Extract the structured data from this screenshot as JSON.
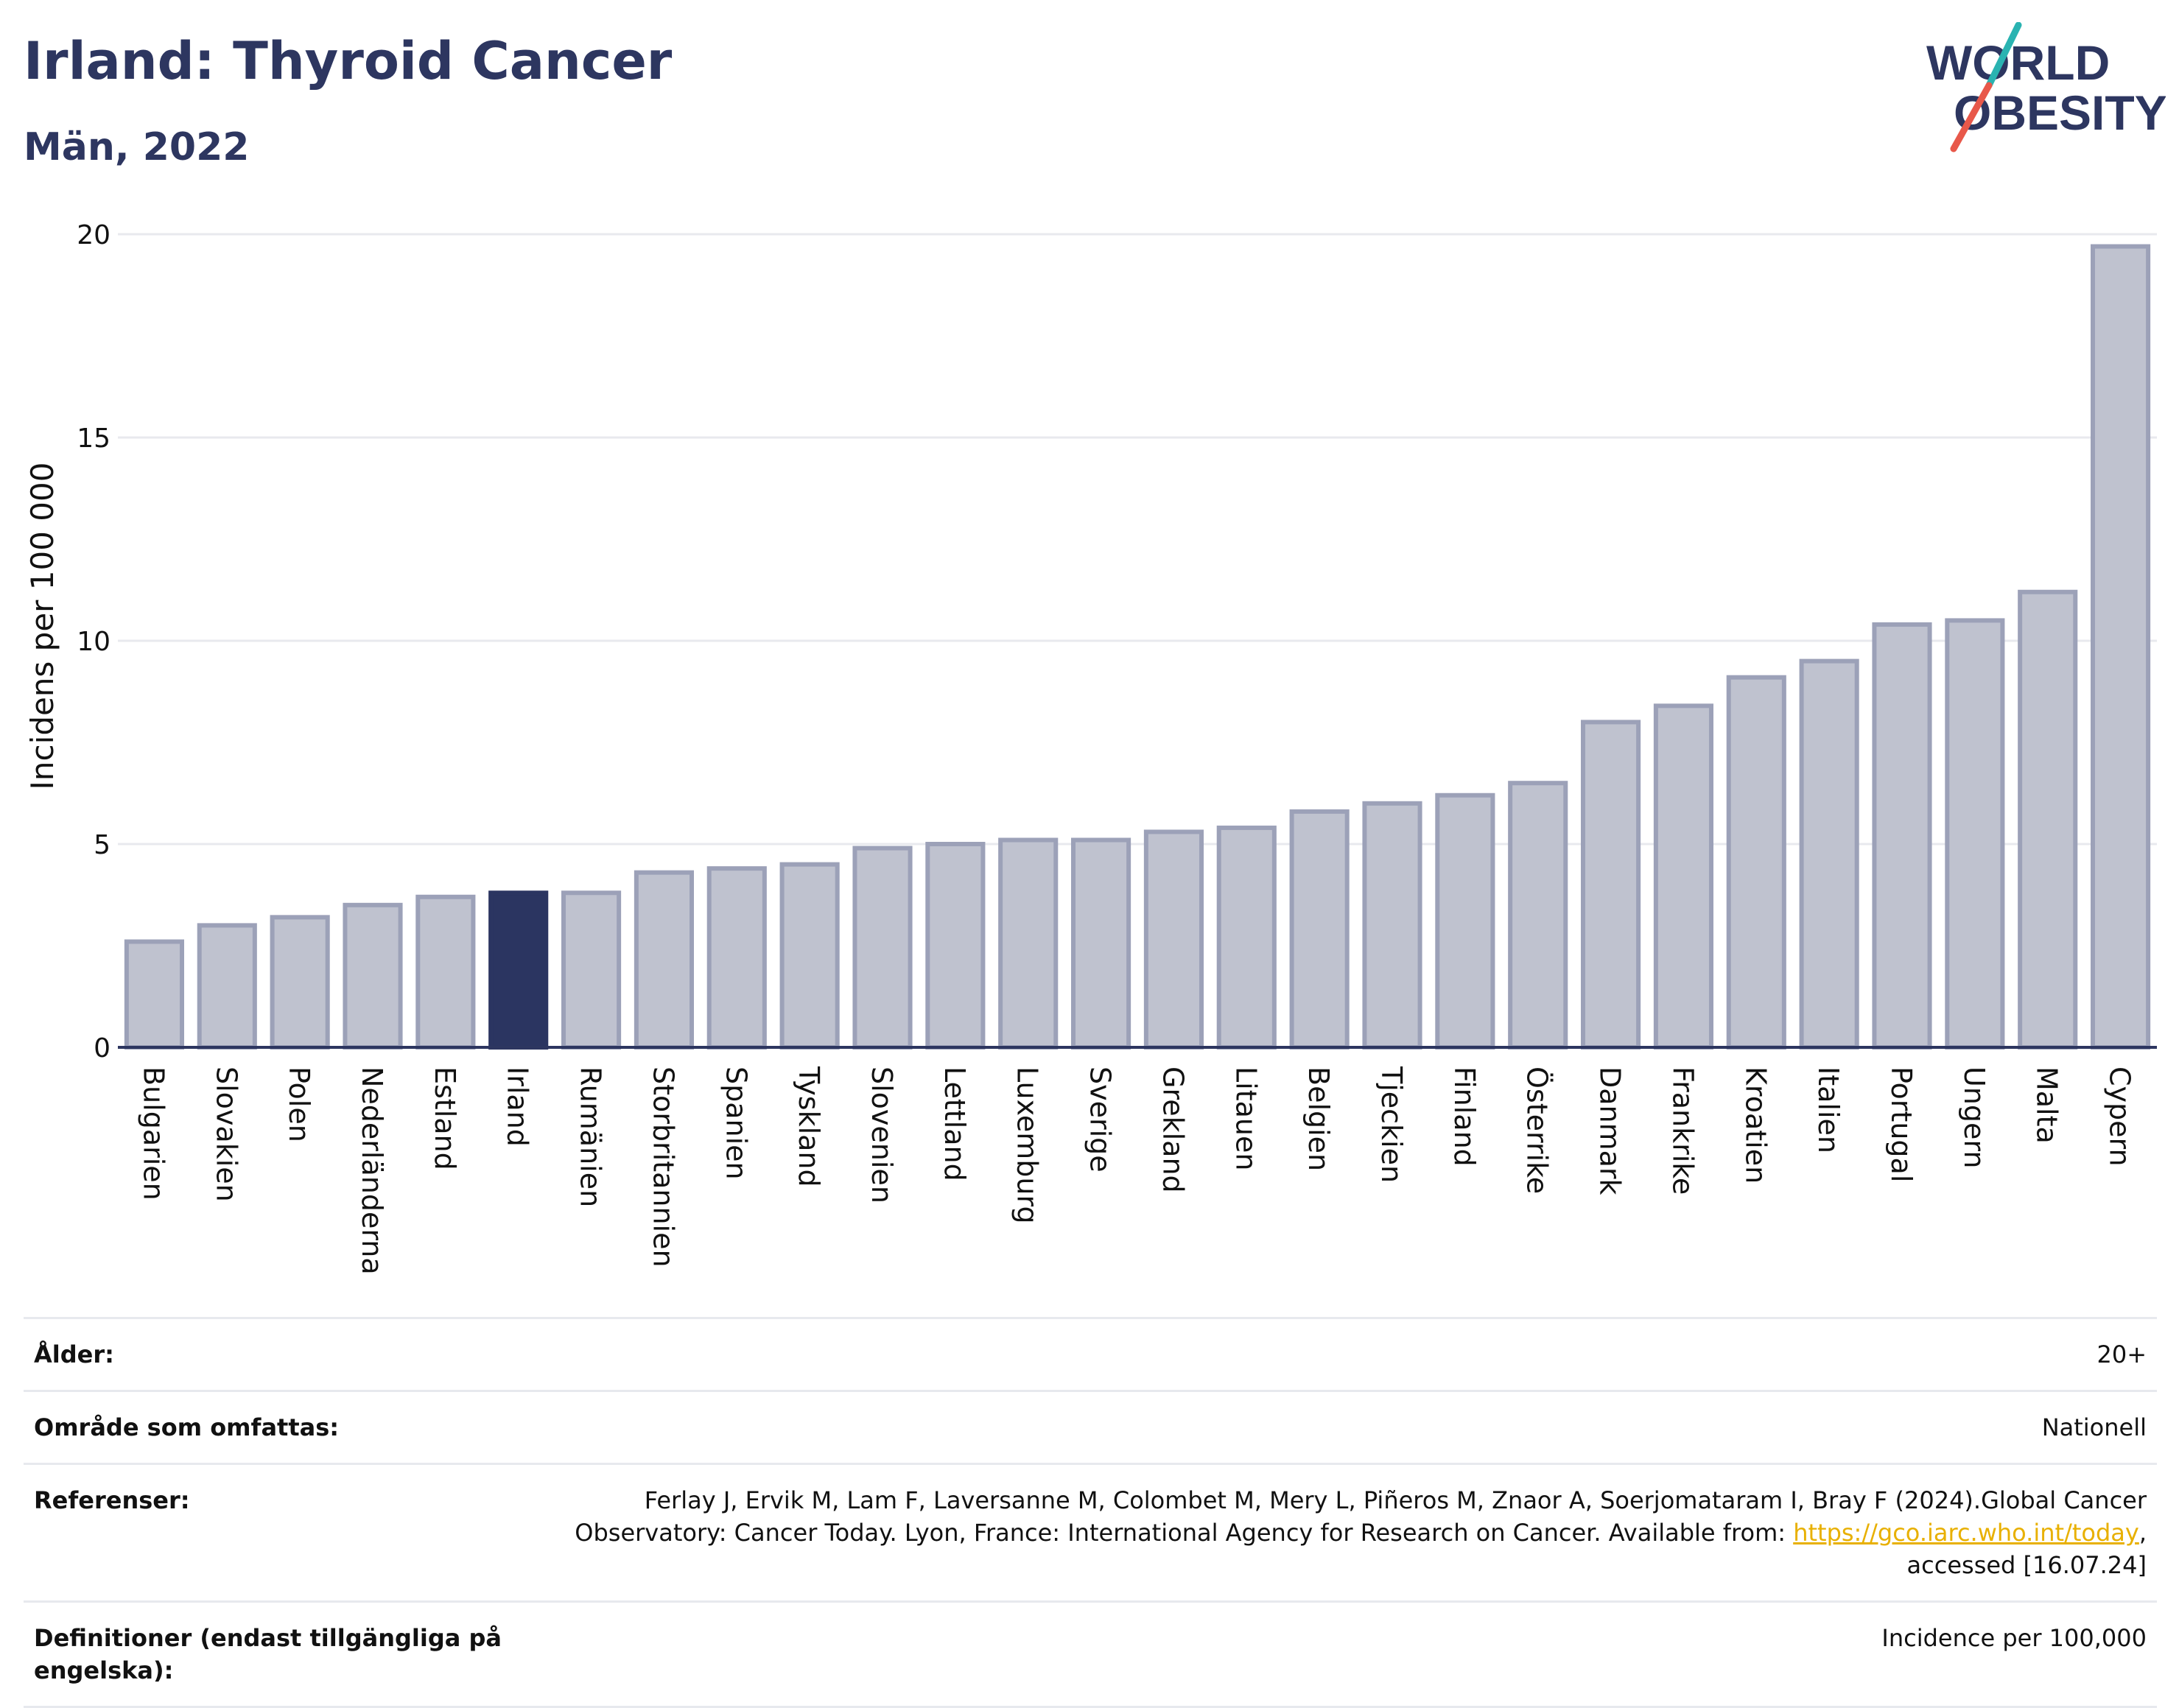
{
  "header": {
    "title": "Irland: Thyroid Cancer",
    "subtitle": "Män, 2022"
  },
  "logo": {
    "line1": "WORLD",
    "line2": "OBESITY",
    "accent_colors": [
      "#2ab3b1",
      "#e8584a"
    ]
  },
  "chart_data": {
    "type": "bar",
    "ylabel": "Incidens per 100 000",
    "ylim": [
      0,
      20
    ],
    "yticks": [
      0,
      5,
      10,
      15,
      20
    ],
    "grid": true,
    "highlight": "Irland",
    "colors": {
      "bar": "#bfc2cf",
      "bar_stroke": "#9ca1b8",
      "highlight": "#2b3561",
      "axis": "#2d3660",
      "grid": "#e8e9ee"
    },
    "categories": [
      "Bulgarien",
      "Slovakien",
      "Polen",
      "Nederländerna",
      "Estland",
      "Irland",
      "Rumänien",
      "Storbritannien",
      "Spanien",
      "Tyskland",
      "Slovenien",
      "Lettland",
      "Luxemburg",
      "Sverige",
      "Grekland",
      "Litauen",
      "Belgien",
      "Tjeckien",
      "Finland",
      "Österrike",
      "Danmark",
      "Frankrike",
      "Kroatien",
      "Italien",
      "Portugal",
      "Ungern",
      "Malta",
      "Cypern"
    ],
    "values": [
      2.6,
      3.0,
      3.2,
      3.5,
      3.7,
      3.8,
      3.8,
      4.3,
      4.4,
      4.5,
      4.9,
      5.0,
      5.1,
      5.1,
      5.3,
      5.4,
      5.8,
      6.0,
      6.2,
      6.5,
      8.0,
      8.4,
      9.1,
      9.5,
      10.4,
      10.5,
      11.2,
      19.7
    ]
  },
  "meta": {
    "age": {
      "label": "Ålder:",
      "value": "20+"
    },
    "area": {
      "label": "Område som omfattas:",
      "value": "Nationell"
    },
    "refs": {
      "label": "Referenser:",
      "line1": "Ferlay J, Ervik M, Lam F, Laversanne M, Colombet M, Mery L, Piñeros M, Znaor A, Soerjomataram I, Bray F (2024).Global Cancer",
      "line2_prefix": "Observatory: Cancer Today. Lyon, France: International Agency for Research on Cancer. Available from: ",
      "link": "https://gco.iarc.who.int/today",
      "line2_suffix": ",",
      "line3": "accessed [16.07.24]"
    },
    "definitions": {
      "label": "Definitioner (endast tillgängliga på engelska):",
      "value": "Incidence per 100,000"
    }
  }
}
